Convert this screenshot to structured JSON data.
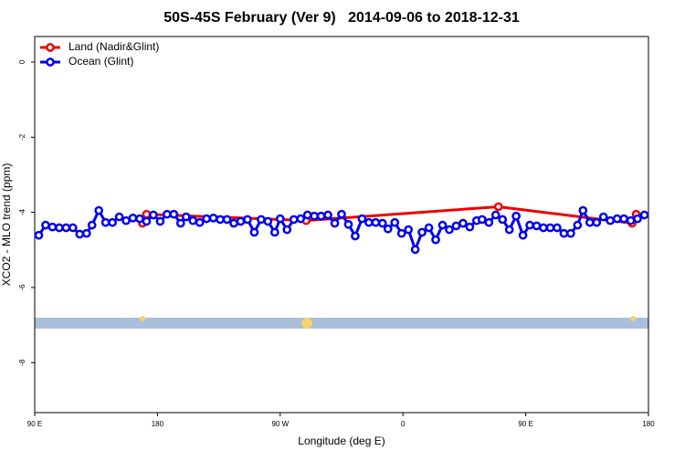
{
  "chart_data": {
    "type": "line",
    "title": "50S-45S February (Ver 9)   2014-09-06 to 2018-12-31",
    "x_label": "Longitude (deg E)",
    "y_label": "XCO2 - MLO trend (ppm)",
    "xlim": [
      90,
      540
    ],
    "xticks": [
      {
        "value": 90,
        "label": "90 E"
      },
      {
        "value": 180,
        "label": "180"
      },
      {
        "value": 270,
        "label": "90 W"
      },
      {
        "value": 360,
        "label": "0"
      },
      {
        "value": 450,
        "label": "90 E"
      },
      {
        "value": 540,
        "label": "180"
      }
    ],
    "ylim": [
      -9.33,
      0.68
    ],
    "yticks": [
      0,
      -2,
      -4,
      -6,
      -8
    ],
    "legend": "top-left",
    "series": [
      {
        "name": "Land (Nadir&Glint)",
        "color": "#ee0000",
        "x": [
          169,
          172,
          289,
          430,
          528,
          531
        ],
        "values": [
          -4.29,
          -4.05,
          -4.22,
          -3.85,
          -4.29,
          -4.05
        ]
      },
      {
        "name": "Ocean (Glint)",
        "color": "#0000ee",
        "x": [
          93,
          98,
          103,
          108,
          113,
          118,
          123,
          128,
          132,
          137,
          142,
          147,
          152,
          157,
          162,
          167,
          172,
          177,
          182,
          187,
          192,
          197,
          201,
          206,
          211,
          216,
          221,
          226,
          231,
          236,
          241,
          246,
          251,
          256,
          261,
          266,
          270,
          275,
          280,
          285,
          290,
          295,
          300,
          305,
          310,
          315,
          320,
          325,
          330,
          335,
          340,
          345,
          349,
          354,
          359,
          364,
          369,
          374,
          379,
          384,
          389,
          394,
          399,
          404,
          409,
          414,
          418,
          423,
          428,
          433,
          438,
          443,
          448,
          453,
          458,
          463,
          468,
          473,
          478,
          483,
          488,
          492,
          497,
          502,
          507,
          512,
          517,
          522,
          527,
          532,
          537
        ],
        "values": [
          -4.61,
          -4.34,
          -4.39,
          -4.41,
          -4.41,
          -4.41,
          -4.58,
          -4.56,
          -4.34,
          -3.95,
          -4.27,
          -4.27,
          -4.12,
          -4.22,
          -4.15,
          -4.17,
          -4.24,
          -4.07,
          -4.24,
          -4.05,
          -4.05,
          -4.29,
          -4.12,
          -4.22,
          -4.27,
          -4.17,
          -4.15,
          -4.19,
          -4.19,
          -4.29,
          -4.24,
          -4.19,
          -4.53,
          -4.19,
          -4.24,
          -4.53,
          -4.17,
          -4.46,
          -4.19,
          -4.17,
          -4.07,
          -4.1,
          -4.1,
          -4.07,
          -4.29,
          -4.05,
          -4.32,
          -4.63,
          -4.17,
          -4.27,
          -4.27,
          -4.29,
          -4.44,
          -4.27,
          -4.56,
          -4.46,
          -4.99,
          -4.53,
          -4.41,
          -4.73,
          -4.34,
          -4.46,
          -4.36,
          -4.29,
          -4.39,
          -4.22,
          -4.19,
          -4.27,
          -4.07,
          -4.19,
          -4.46,
          -4.1,
          -4.61,
          -4.34,
          -4.36,
          -4.41,
          -4.41,
          -4.41,
          -4.56,
          -4.56,
          -4.34,
          -3.95,
          -4.27,
          -4.27,
          -4.12,
          -4.22,
          -4.17,
          -4.17,
          -4.22,
          -4.17,
          -4.07
        ]
      }
    ]
  }
}
